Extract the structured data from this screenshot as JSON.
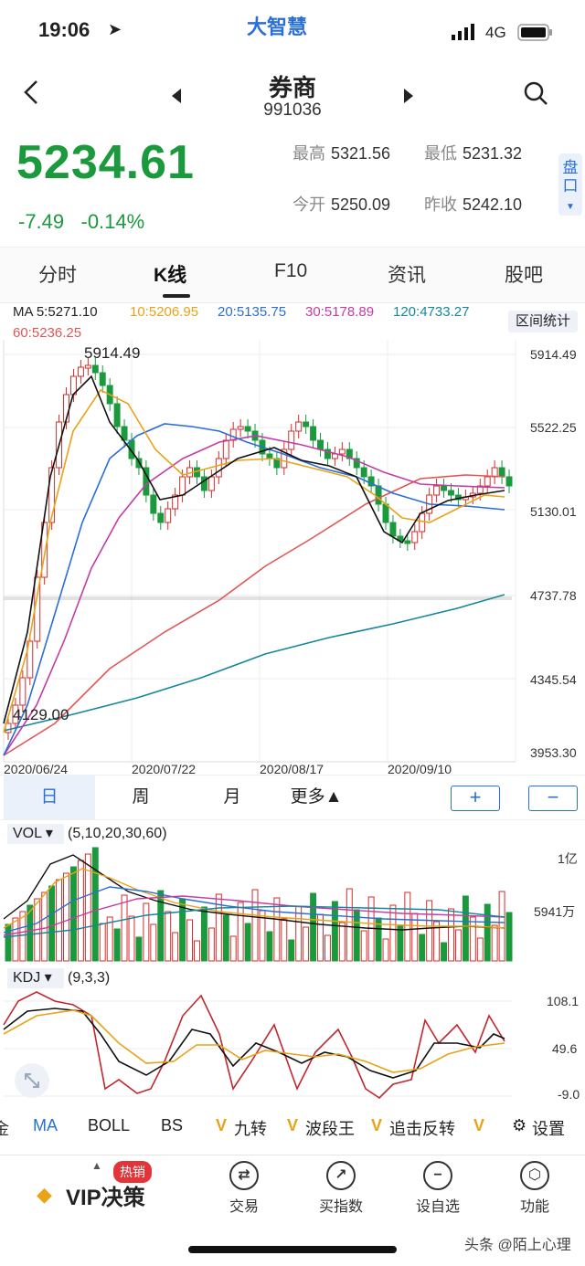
{
  "status": {
    "time": "19:06",
    "network": "4G",
    "app_logo_text": "大智慧"
  },
  "header": {
    "title": "券商",
    "code": "991036"
  },
  "quote": {
    "price": "5234.61",
    "change": "-7.49",
    "change_pct": "-0.14%",
    "high_label": "最高",
    "high": "5321.56",
    "low_label": "最低",
    "low": "5231.32",
    "open_label": "今开",
    "open": "5250.09",
    "prev_label": "昨收",
    "prev": "5242.10",
    "pankou": "盘口"
  },
  "tabs": [
    "分时",
    "K线",
    "F10",
    "资讯",
    "股吧"
  ],
  "active_tab": "K线",
  "ma_legend": {
    "ma5": "MA 5:5271.10",
    "ma10": "10:5206.95",
    "ma20": "20:5135.75",
    "ma30": "30:5178.89",
    "ma120": "120:4733.27",
    "ma60": "60:5236.25",
    "range_btn": "区间统计"
  },
  "colors": {
    "up": "#d62b2b",
    "down": "#1a9a3c",
    "ma5": "#111111",
    "ma10": "#e8a317",
    "ma20": "#2a6fd6",
    "ma30": "#c43ca5",
    "ma60": "#e05656",
    "ma120": "#16869a",
    "accent": "#2a6fd6"
  },
  "kline": {
    "y_labels": [
      "5914.49",
      "5522.25",
      "5130.01",
      "4737.78",
      "4345.54",
      "3953.30"
    ],
    "x_labels": [
      "2020/06/24",
      "2020/07/22",
      "2020/08/17",
      "2020/09/10"
    ],
    "max_label": "5914.49",
    "min_label": "4129.00"
  },
  "periods": [
    "日",
    "周",
    "月",
    "更多▲"
  ],
  "zoom": {
    "plus": "+",
    "minus": "−"
  },
  "vol": {
    "label": "VOL ▾",
    "params": "(5,10,20,30,60)",
    "y1": "1亿",
    "y2": "5941万"
  },
  "kdj": {
    "label": "KDJ ▾",
    "params": "(9,3,3)",
    "y1": "108.1",
    "y2": "49.6",
    "y3": "-9.0"
  },
  "indicators": [
    "金",
    "MA",
    "BOLL",
    "BS",
    "九转",
    "波段王",
    "追击反转",
    "设置"
  ],
  "bottom_nav": {
    "vip": "VIP决策",
    "hot": "热销",
    "items": [
      "交易",
      "买指数",
      "设自选",
      "功能"
    ]
  },
  "watermark": "头条 @陌上心理"
}
